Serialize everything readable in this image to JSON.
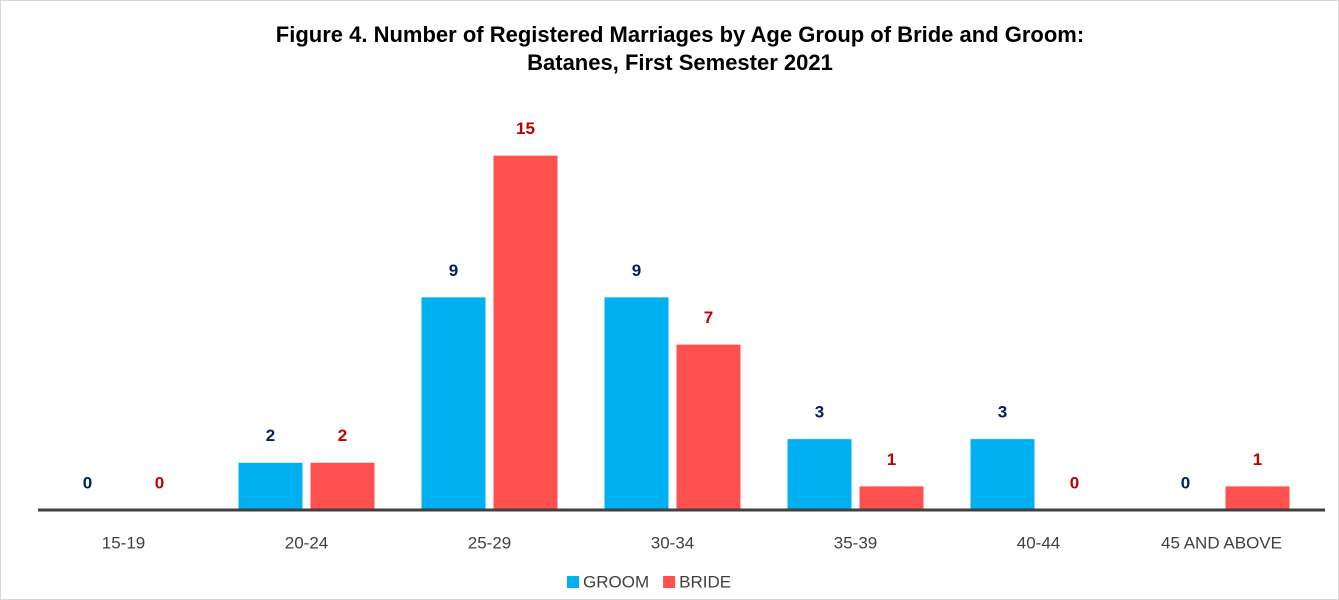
{
  "chart_data": {
    "type": "bar",
    "title": [
      "Figure 4. Number of Registered Marriages by Age Group of Bride and Groom:",
      "Batanes, First Semester 2021"
    ],
    "categories": [
      "15-19",
      "20-24",
      "25-29",
      "30-34",
      "35-39",
      "40-44",
      "45 AND ABOVE"
    ],
    "series": [
      {
        "name": "GROOM",
        "color": "#00b0f0",
        "label_color": "#002060",
        "values": [
          0,
          2,
          9,
          9,
          3,
          3,
          0
        ]
      },
      {
        "name": "BRIDE",
        "color": "#ff5050",
        "label_color": "#c00000",
        "values": [
          0,
          2,
          15,
          7,
          1,
          0,
          1
        ]
      }
    ],
    "ylim": [
      0,
      16
    ],
    "legend": "bottom"
  }
}
